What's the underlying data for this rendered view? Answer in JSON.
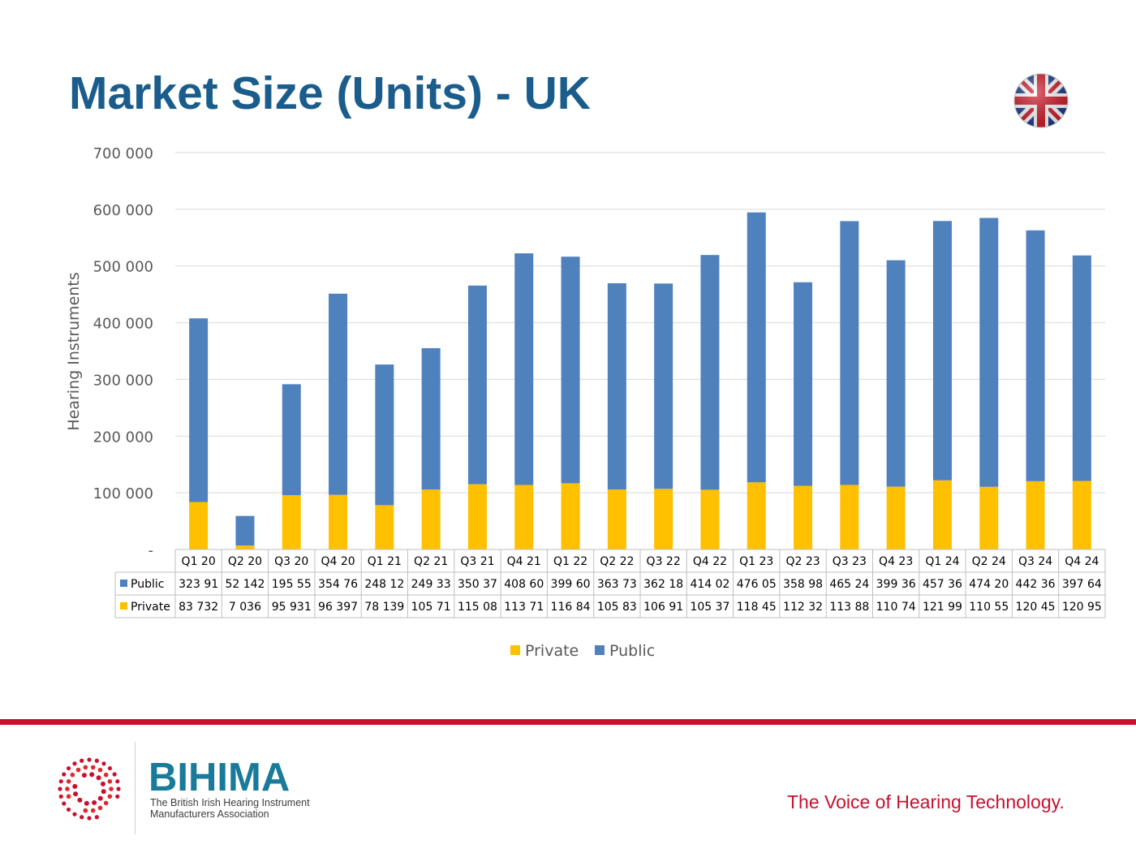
{
  "header": {
    "title": "Market Size (Units) - UK",
    "flag_icon": "uk-flag-icon"
  },
  "colors": {
    "title": "#1a5d8c",
    "public": "#4f81bd",
    "private": "#ffc000",
    "accent_red": "#c8102e",
    "brand": "#1a7a9a"
  },
  "chart_data": {
    "type": "bar",
    "stacked": true,
    "title": "",
    "xlabel": "",
    "ylabel": "Hearing Instruments",
    "ylim": [
      0,
      700000
    ],
    "yticks": [
      0,
      100000,
      200000,
      300000,
      400000,
      500000,
      600000,
      700000
    ],
    "ytick_labels": [
      "-",
      "100 000",
      "200 000",
      "300 000",
      "400 000",
      "500 000",
      "600 000",
      "700 000"
    ],
    "grid": true,
    "legend_position": "bottom",
    "categories": [
      "Q1 20",
      "Q2 20",
      "Q3 20",
      "Q4 20",
      "Q1 21",
      "Q2 21",
      "Q3 21",
      "Q4 21",
      "Q1 22",
      "Q2 22",
      "Q3 22",
      "Q4 22",
      "Q1 23",
      "Q2 23",
      "Q3 23",
      "Q4 23",
      "Q1 24",
      "Q2 24",
      "Q3 24",
      "Q4 24"
    ],
    "series": [
      {
        "name": "Public",
        "values": [
          323910,
          52142,
          195550,
          354760,
          248120,
          249330,
          350370,
          408600,
          399600,
          363730,
          362180,
          414020,
          476050,
          358980,
          465240,
          399360,
          457360,
          474200,
          442360,
          397640
        ],
        "labels": [
          "323 91",
          "52 142",
          "195 55",
          "354 76",
          "248 12",
          "249 33",
          "350 37",
          "408 60",
          "399 60",
          "363 73",
          "362 18",
          "414 02",
          "476 05",
          "358 98",
          "465 24",
          "399 36",
          "457 36",
          "474 20",
          "442 36",
          "397 64"
        ]
      },
      {
        "name": "Private",
        "values": [
          83732,
          7036,
          95931,
          96397,
          78139,
          105710,
          115080,
          113710,
          116840,
          105830,
          106910,
          105370,
          118450,
          112320,
          113880,
          110740,
          121990,
          110550,
          120450,
          120950
        ],
        "labels": [
          "83 732",
          "7 036",
          "95 931",
          "96 397",
          "78 139",
          "105 71",
          "115 08",
          "113 71",
          "116 84",
          "105 83",
          "106 91",
          "105 37",
          "118 45",
          "112 32",
          "113 88",
          "110 74",
          "121 99",
          "110 55",
          "120 45",
          "120 95"
        ]
      }
    ],
    "legend": [
      "Private",
      "Public"
    ]
  },
  "footer": {
    "brand": "BIHIMA",
    "brand_sub_line1": "The British Irish Hearing Instrument",
    "brand_sub_line2": "Manufacturers Association",
    "tagline": "The Voice of Hearing Technology.",
    "logo_icon": "bihima-logo-icon"
  }
}
